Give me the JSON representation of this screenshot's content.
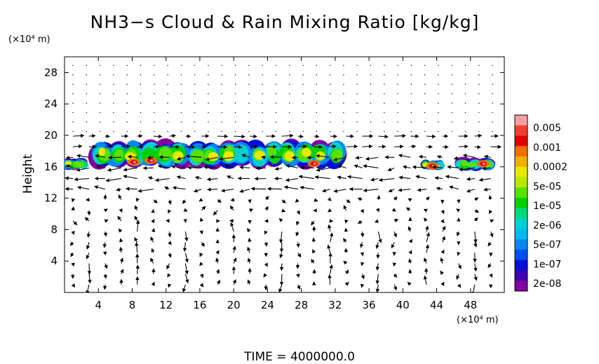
{
  "chart_data": {
    "type": "heatmap",
    "title": "NH3−s Cloud & Rain Mixing Ratio [kg/kg]",
    "ylabel": "Height",
    "x_unit": "(×10⁴ m)",
    "y_unit": "(×10⁴ m)",
    "footer": "TIME = 4000000.0",
    "xlim": [
      0,
      52
    ],
    "ylim": [
      0,
      30
    ],
    "x_ticks": [
      4,
      8,
      12,
      16,
      20,
      24,
      28,
      32,
      36,
      40,
      44,
      48
    ],
    "y_ticks": [
      4,
      8,
      12,
      16,
      20,
      24,
      28
    ],
    "colorbar": {
      "labels": [
        "0.005",
        "0.001",
        "0.0002",
        "5e-05",
        "1e-05",
        "2e-06",
        "5e-07",
        "1e-07",
        "2e-08"
      ],
      "colors_top_to_bottom": [
        "#f4a0a0",
        "#ee4030",
        "#e00000",
        "#f07000",
        "#f0b000",
        "#e8e800",
        "#b8e800",
        "#58e000",
        "#00d000",
        "#00d880",
        "#00d0d0",
        "#00b8f0",
        "#0088f0",
        "#0050f0",
        "#0010d8",
        "#4000b0",
        "#8000a0"
      ]
    },
    "cloud_regions": [
      {
        "x0": 3.5,
        "x1": 33.0,
        "y0": 16.0,
        "y1": 19.2,
        "level": "cloud layer"
      },
      {
        "x0": 0.0,
        "x1": 2.5,
        "y0": 15.7,
        "y1": 17.0,
        "level": "cloud patch"
      },
      {
        "x0": 42.5,
        "x1": 44.5,
        "y0": 15.7,
        "y1": 16.8,
        "level": "cloud patch"
      },
      {
        "x0": 46.5,
        "x1": 50.5,
        "y0": 15.6,
        "y1": 17.0,
        "level": "cloud patch"
      }
    ],
    "grid": false,
    "legend_placement": "right"
  }
}
